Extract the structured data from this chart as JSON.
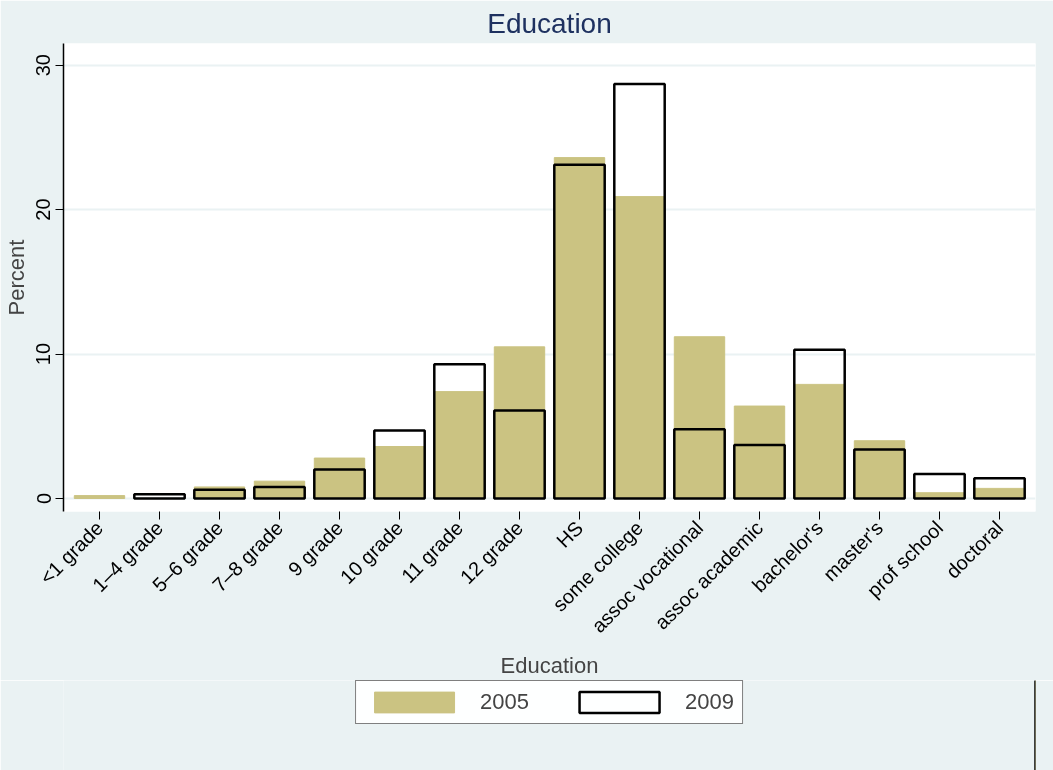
{
  "chart_data": {
    "type": "bar",
    "title": "Education",
    "xlabel": "Education",
    "ylabel": "Percent",
    "categories": [
      "<1 grade",
      "1–4 grade",
      "5–6 grade",
      "7–8 grade",
      "9 grade",
      "10 grade",
      "11 grade",
      "12 grade",
      "HS",
      "some college",
      "assoc vocational",
      "assoc academic",
      "bachelor's",
      "master's",
      "prof school",
      "doctoral"
    ],
    "series": [
      {
        "name": "2005",
        "color": "#cbc382",
        "values": [
          0.2,
          null,
          0.8,
          1.2,
          2.8,
          3.6,
          7.4,
          10.5,
          23.6,
          20.9,
          11.2,
          6.4,
          7.9,
          4.0,
          0.4,
          0.7
        ]
      },
      {
        "name": "2009",
        "color": "#000000",
        "values": [
          null,
          0.3,
          0.6,
          0.8,
          2.0,
          4.7,
          9.3,
          6.1,
          23.1,
          28.7,
          4.8,
          3.7,
          10.3,
          3.4,
          1.7,
          1.4
        ]
      }
    ],
    "ylim": [
      -0.9,
      31.5
    ],
    "yticks": [
      0,
      10,
      20,
      30
    ],
    "grid": "y",
    "legend": "bottom"
  }
}
